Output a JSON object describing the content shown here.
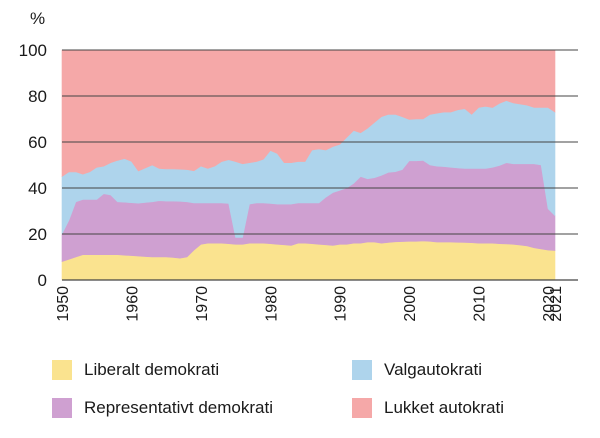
{
  "chart_data": {
    "type": "area",
    "stacked": true,
    "title": "",
    "xlabel": "",
    "ylabel": "%",
    "ylim": [
      0,
      100
    ],
    "xlim": [
      1950,
      2021
    ],
    "y_ticks": [
      "0",
      "20",
      "40",
      "60",
      "80",
      "100"
    ],
    "x_ticks": [
      "1950",
      "1960",
      "1970",
      "1980",
      "1990",
      "2000",
      "2010",
      "2020",
      "2021"
    ],
    "grid": true,
    "legend_position": "bottom",
    "x": [
      1950,
      1951,
      1952,
      1953,
      1954,
      1955,
      1956,
      1957,
      1958,
      1959,
      1960,
      1961,
      1962,
      1963,
      1964,
      1965,
      1966,
      1967,
      1968,
      1969,
      1970,
      1971,
      1972,
      1973,
      1974,
      1975,
      1976,
      1977,
      1978,
      1979,
      1980,
      1981,
      1982,
      1983,
      1984,
      1985,
      1986,
      1987,
      1988,
      1989,
      1990,
      1991,
      1992,
      1993,
      1994,
      1995,
      1996,
      1997,
      1998,
      1999,
      2000,
      2001,
      2002,
      2003,
      2004,
      2005,
      2006,
      2007,
      2008,
      2009,
      2010,
      2011,
      2012,
      2013,
      2014,
      2015,
      2016,
      2017,
      2018,
      2019,
      2020,
      2021
    ],
    "series": [
      {
        "name": "Liberalt demokrati",
        "color": "#fae38f",
        "values": [
          8,
          9,
          10,
          11,
          11,
          11,
          11,
          11,
          11,
          10.8,
          10.6,
          10.4,
          10.2,
          10,
          10,
          10,
          9.8,
          9.5,
          10,
          13,
          15.5,
          16,
          16,
          16,
          15.8,
          15.5,
          15.5,
          16,
          16,
          16,
          15.8,
          15.5,
          15.3,
          15,
          16,
          16,
          15.8,
          15.5,
          15.3,
          15,
          15.5,
          15.5,
          16,
          16,
          16.5,
          16.5,
          16,
          16.3,
          16.6,
          16.7,
          16.8,
          16.8,
          17,
          16.8,
          16.5,
          16.5,
          16.5,
          16.4,
          16.3,
          16.2,
          16,
          16,
          16,
          15.8,
          15.7,
          15.5,
          15.2,
          14.8,
          14,
          13.5,
          13,
          12.8
        ]
      },
      {
        "name": "Representativt demokrati",
        "color": "#cfa0d1",
        "values": [
          12,
          17,
          24,
          24,
          24,
          24,
          26.5,
          26,
          23,
          23,
          23,
          23,
          23.5,
          24,
          24.5,
          24.3,
          24.5,
          24.7,
          24,
          20.5,
          18,
          17.5,
          17.5,
          17.5,
          17.5,
          3,
          3,
          17,
          17.5,
          17.5,
          17.5,
          17.5,
          17.7,
          18,
          17.5,
          17.5,
          17.7,
          18,
          20.7,
          23,
          23.5,
          24.5,
          26,
          29,
          27.5,
          28,
          29.5,
          30.5,
          30.5,
          31.3,
          35,
          35,
          35,
          33.2,
          33,
          32.8,
          32.5,
          32.3,
          32.2,
          32.3,
          32.5,
          32.5,
          33,
          34,
          35.3,
          35,
          35.3,
          35.7,
          36.5,
          36.5,
          18,
          15.2
        ]
      },
      {
        "name": "Valgautokrati",
        "color": "#aed4ec",
        "values": [
          25,
          21,
          13,
          11,
          12,
          14,
          12,
          14,
          18,
          19,
          18,
          14,
          15,
          16,
          14,
          14,
          14,
          14,
          14,
          14,
          16,
          15,
          16,
          18,
          19,
          33,
          32,
          18,
          18,
          19,
          23,
          22,
          18,
          18,
          18,
          18,
          23,
          23.5,
          20.5,
          20,
          20,
          22,
          23,
          19,
          22,
          24,
          25.5,
          25.2,
          24.9,
          23,
          18,
          18.2,
          18,
          22,
          23,
          23.7,
          24,
          25.3,
          26,
          23.5,
          26.5,
          27,
          26,
          27,
          27,
          26.5,
          26,
          25.5,
          24.5,
          25,
          44,
          45
        ]
      },
      {
        "name": "Lukket autokrati",
        "color": "#f5a8a8",
        "values": [
          55,
          53,
          53,
          54,
          53,
          51,
          50.5,
          49,
          48,
          47.2,
          48.4,
          52.6,
          51.3,
          50,
          51.5,
          51.7,
          51.7,
          51.8,
          52,
          52.5,
          50.5,
          51.5,
          50.5,
          48.5,
          47.7,
          48.5,
          49.5,
          49,
          48.5,
          47.5,
          43.7,
          45,
          49,
          49,
          48.5,
          48.5,
          43.5,
          43,
          43.5,
          42,
          41,
          38,
          35,
          36,
          34,
          31.5,
          29,
          28,
          28,
          29,
          30.2,
          30,
          30,
          28,
          27.5,
          27,
          27,
          26,
          25.5,
          28,
          25,
          24.5,
          25,
          23.2,
          22,
          23,
          23.5,
          24,
          25,
          25,
          25,
          27
        ]
      }
    ]
  }
}
